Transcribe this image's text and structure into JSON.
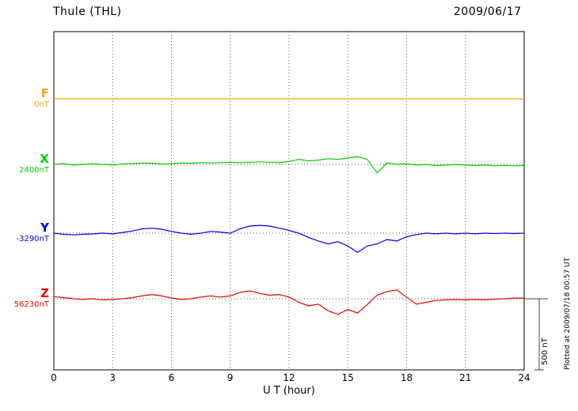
{
  "header": {
    "station": "Thule (THL)",
    "date": "2009/06/17"
  },
  "axis": {
    "xlabel": "U T (hour)",
    "ticks": [
      0,
      3,
      6,
      9,
      12,
      15,
      18,
      21,
      24
    ]
  },
  "scale_bar": {
    "label": "500 nT"
  },
  "footer_note": "Plotted at 2009/07/18 00:57 UT",
  "chart_data": {
    "type": "line",
    "title": "Thule (THL) magnetogram",
    "subtitle": "2009/06/17",
    "xlabel": "U T (hour)",
    "x_range": [
      0,
      24
    ],
    "x_step_hours": 0.5,
    "grid": "dotted vertical lines every 3 hours, dotted baseline per channel",
    "scale_bar_nT": 500,
    "channels": [
      {
        "id": "F",
        "label": "F",
        "baseline_label": "0nT",
        "color": "#FFA500",
        "offsets_nT": [
          0,
          0,
          0,
          0,
          0,
          0,
          0,
          0,
          0,
          0,
          0,
          0,
          0,
          0,
          0,
          0,
          0,
          0,
          0,
          0,
          0,
          0,
          0,
          0,
          0,
          0,
          0,
          0,
          0,
          0,
          0,
          0,
          0,
          0,
          0,
          0,
          0,
          0,
          0,
          0,
          0,
          0,
          0,
          0,
          0,
          0,
          0,
          0,
          0
        ]
      },
      {
        "id": "X",
        "label": "X",
        "baseline_label": "2400nT",
        "color": "#00CC00",
        "offsets_nT": [
          0,
          5,
          -5,
          0,
          5,
          0,
          -5,
          3,
          5,
          10,
          8,
          3,
          5,
          10,
          8,
          12,
          10,
          12,
          15,
          12,
          15,
          18,
          15,
          12,
          20,
          35,
          25,
          30,
          40,
          35,
          45,
          55,
          35,
          -60,
          10,
          0,
          5,
          -5,
          0,
          -8,
          -5,
          0,
          -5,
          -8,
          -5,
          -10,
          -8,
          -10,
          -8
        ]
      },
      {
        "id": "Y",
        "label": "Y",
        "baseline_label": "-3290nT",
        "color": "#0000EE",
        "offsets_nT": [
          0,
          -8,
          -12,
          -8,
          -5,
          0,
          -5,
          5,
          15,
          30,
          35,
          28,
          12,
          0,
          -8,
          0,
          12,
          8,
          0,
          30,
          50,
          55,
          50,
          35,
          20,
          0,
          -30,
          -55,
          -75,
          -60,
          -90,
          -135,
          -90,
          -75,
          -45,
          -55,
          -25,
          -10,
          0,
          -5,
          0,
          -5,
          0,
          -5,
          0,
          -3,
          0,
          -3,
          0
        ]
      },
      {
        "id": "Z",
        "label": "Z",
        "baseline_label": "56230nT",
        "color": "#EE0000",
        "offsets_nT": [
          15,
          8,
          0,
          -5,
          0,
          -8,
          -5,
          0,
          8,
          20,
          30,
          20,
          5,
          -5,
          0,
          12,
          20,
          12,
          20,
          45,
          55,
          38,
          25,
          30,
          12,
          -25,
          -50,
          -38,
          -85,
          -110,
          -75,
          -100,
          -40,
          25,
          50,
          62,
          12,
          -38,
          -25,
          -12,
          -8,
          -5,
          -8,
          -5,
          -8,
          -3,
          0,
          5,
          5
        ]
      }
    ]
  }
}
